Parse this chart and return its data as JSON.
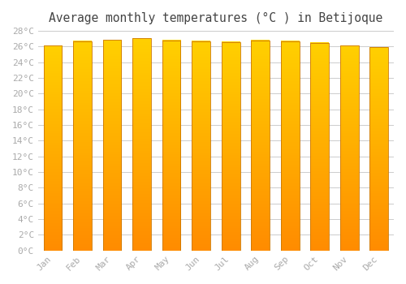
{
  "title": "Average monthly temperatures (°C ) in Betijoque",
  "months": [
    "Jan",
    "Feb",
    "Mar",
    "Apr",
    "May",
    "Jun",
    "Jul",
    "Aug",
    "Sep",
    "Oct",
    "Nov",
    "Dec"
  ],
  "values": [
    26.1,
    26.7,
    26.9,
    27.1,
    26.8,
    26.7,
    26.6,
    26.8,
    26.7,
    26.5,
    26.1,
    25.9
  ],
  "bar_color_top": "#FFD000",
  "bar_color_bottom": "#FF8C00",
  "bar_edge_color": "#CC7700",
  "background_color": "#ffffff",
  "plot_bg_color": "#ffffff",
  "grid_color": "#cccccc",
  "ylim": [
    0,
    28
  ],
  "ytick_step": 2,
  "title_fontsize": 10.5,
  "tick_fontsize": 8,
  "title_color": "#444444",
  "tick_color": "#aaaaaa",
  "bar_width": 0.62
}
